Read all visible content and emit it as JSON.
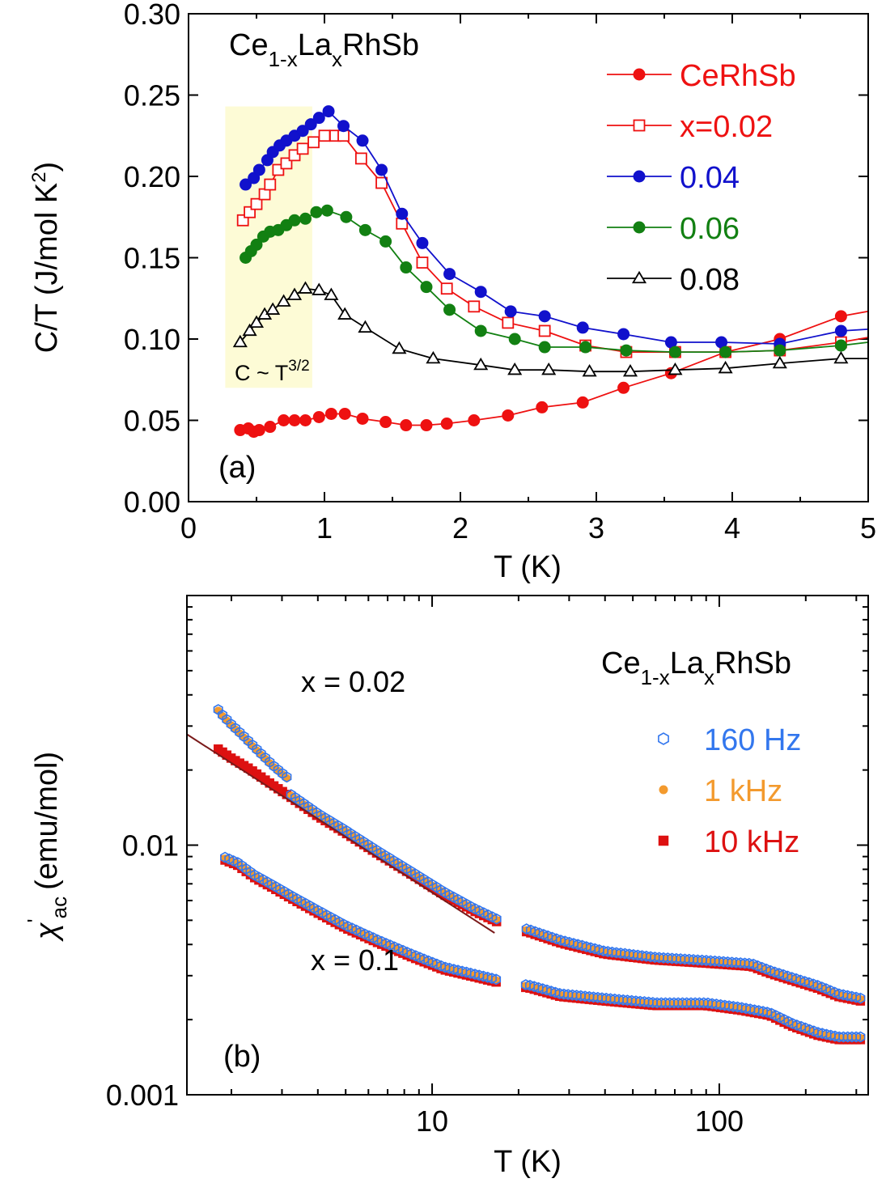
{
  "chart_data": [
    {
      "panel": "(a)",
      "type": "line",
      "title_parts": {
        "ce": "Ce",
        "sub1": "1-x",
        "la": "La",
        "sub2": "x",
        "rest": "RhSb"
      },
      "xlabel": "T (K)",
      "ylabel": {
        "main": "C/T (J/mol K",
        "sup": "2",
        "close": ")"
      },
      "xlim": [
        0,
        5
      ],
      "ylim": [
        0,
        0.3
      ],
      "xticks": [
        0,
        1,
        2,
        3,
        4,
        5
      ],
      "xtick_labels": [
        "0",
        "1",
        "2",
        "3",
        "4",
        "5"
      ],
      "yticks": [
        0,
        0.05,
        0.1,
        0.15,
        0.2,
        0.25,
        0.3
      ],
      "ytick_labels": [
        "0.00",
        "0.05",
        "0.10",
        "0.15",
        "0.20",
        "0.25",
        "0.30"
      ],
      "shaded_region": {
        "x": [
          0.27,
          0.91
        ],
        "y": [
          0.07,
          0.243
        ]
      },
      "annotation": {
        "text": "C ~ T",
        "sup": "3/2",
        "x": 0.32,
        "y": 0.078
      },
      "series": [
        {
          "name": "CeRhSb",
          "color": "#ee1111",
          "marker": "filled-circle",
          "x": [
            0.38,
            0.44,
            0.48,
            0.52,
            0.6,
            0.7,
            0.78,
            0.86,
            0.96,
            1.05,
            1.15,
            1.28,
            1.45,
            1.6,
            1.75,
            1.9,
            2.1,
            2.35,
            2.6,
            2.9,
            3.2,
            3.55,
            3.95,
            4.35,
            4.8,
            5.0
          ],
          "values": [
            0.044,
            0.045,
            0.043,
            0.044,
            0.046,
            0.05,
            0.05,
            0.05,
            0.052,
            0.054,
            0.054,
            0.051,
            0.049,
            0.047,
            0.047,
            0.048,
            0.05,
            0.053,
            0.058,
            0.061,
            0.07,
            0.079,
            0.092,
            0.1,
            0.114,
            0.117
          ]
        },
        {
          "name": "x=0.02",
          "color": "#ee1111",
          "marker": "open-square",
          "x": [
            0.4,
            0.45,
            0.5,
            0.56,
            0.6,
            0.66,
            0.72,
            0.78,
            0.84,
            0.92,
            1.0,
            1.08,
            1.14,
            1.27,
            1.42,
            1.57,
            1.72,
            1.9,
            2.1,
            2.35,
            2.62,
            2.92,
            3.22,
            3.58,
            3.95,
            4.35,
            4.8,
            5.0
          ],
          "values": [
            0.173,
            0.178,
            0.183,
            0.189,
            0.195,
            0.204,
            0.208,
            0.213,
            0.217,
            0.221,
            0.225,
            0.225,
            0.225,
            0.211,
            0.196,
            0.171,
            0.147,
            0.131,
            0.12,
            0.11,
            0.105,
            0.096,
            0.092,
            0.092,
            0.092,
            0.093,
            0.098,
            0.101
          ]
        },
        {
          "name": "0.04",
          "color": "#1111cc",
          "marker": "filled-circle",
          "x": [
            0.42,
            0.48,
            0.52,
            0.58,
            0.62,
            0.67,
            0.72,
            0.78,
            0.84,
            0.9,
            0.96,
            1.03,
            1.14,
            1.28,
            1.42,
            1.57,
            1.72,
            1.92,
            2.15,
            2.37,
            2.62,
            2.9,
            3.2,
            3.55,
            3.92,
            4.35,
            4.8,
            5.0
          ],
          "values": [
            0.195,
            0.199,
            0.204,
            0.21,
            0.215,
            0.219,
            0.222,
            0.225,
            0.228,
            0.232,
            0.236,
            0.24,
            0.231,
            0.222,
            0.204,
            0.177,
            0.159,
            0.14,
            0.129,
            0.117,
            0.114,
            0.107,
            0.103,
            0.098,
            0.098,
            0.097,
            0.105,
            0.106
          ]
        },
        {
          "name": "0.06",
          "color": "#128012",
          "marker": "filled-circle",
          "x": [
            0.42,
            0.46,
            0.5,
            0.55,
            0.6,
            0.66,
            0.72,
            0.78,
            0.86,
            0.94,
            1.02,
            1.16,
            1.3,
            1.45,
            1.6,
            1.75,
            1.92,
            2.15,
            2.4,
            2.62,
            2.92,
            3.22,
            3.58,
            3.95,
            4.35,
            4.8,
            5.0
          ],
          "values": [
            0.15,
            0.154,
            0.158,
            0.163,
            0.166,
            0.167,
            0.17,
            0.173,
            0.174,
            0.178,
            0.179,
            0.175,
            0.167,
            0.16,
            0.144,
            0.132,
            0.118,
            0.105,
            0.1,
            0.095,
            0.095,
            0.093,
            0.092,
            0.092,
            0.093,
            0.096,
            0.098
          ]
        },
        {
          "name": "0.08",
          "color": "#000000",
          "marker": "open-triangle",
          "x": [
            0.38,
            0.45,
            0.5,
            0.56,
            0.62,
            0.7,
            0.78,
            0.86,
            0.96,
            1.05,
            1.15,
            1.3,
            1.55,
            1.8,
            2.15,
            2.4,
            2.65,
            2.95,
            3.25,
            3.58,
            3.95,
            4.35,
            4.8,
            5.0
          ],
          "values": [
            0.098,
            0.105,
            0.11,
            0.115,
            0.118,
            0.123,
            0.127,
            0.131,
            0.13,
            0.127,
            0.115,
            0.107,
            0.094,
            0.088,
            0.084,
            0.081,
            0.081,
            0.08,
            0.08,
            0.081,
            0.082,
            0.085,
            0.088,
            0.088
          ]
        }
      ]
    },
    {
      "panel": "(b)",
      "type": "scatter",
      "xscale": "log",
      "yscale": "log",
      "title_parts": {
        "ce": "Ce",
        "sub1": "1-x",
        "la": "La",
        "sub2": "x",
        "rest": "RhSb"
      },
      "xlabel": "T (K)",
      "ylabel": {
        "greek": "χ",
        "prime": "'",
        "sub": "ac",
        "unit": "(emu/mol)"
      },
      "xlim": [
        1.4,
        330
      ],
      "ylim": [
        0.001,
        0.1
      ],
      "xticks": [
        10,
        100
      ],
      "xtick_labels": [
        "10",
        "100"
      ],
      "yticks": [
        0.001,
        0.01
      ],
      "ytick_labels": [
        "0.001",
        "0.01"
      ],
      "annotations": [
        {
          "text": "x = 0.02",
          "x": 7.0,
          "y": 0.0215
        },
        {
          "text": "x = 0.1",
          "x": 6.3,
          "y": 0.00285
        }
      ],
      "fit_line": {
        "x": [
          1.4,
          16.5
        ],
        "y": [
          0.0278,
          0.00445
        ],
        "color": "#7a1a1a"
      },
      "series": [
        {
          "name": "160 Hz",
          "color": "#3377ee",
          "marker": "open-hexagon",
          "x_offset_factor": 1.0,
          "y_offset_factor": 1.015
        },
        {
          "name": "1 kHz",
          "color": "#f39a2e",
          "marker": "filled-circle",
          "x_offset_factor": 1.0,
          "y_offset_factor": 1.005
        },
        {
          "name": "10 kHz",
          "color": "#dd1111",
          "marker": "filled-square",
          "x_offset_factor": 1.0,
          "y_offset_factor": 0.99
        }
      ],
      "curves": [
        {
          "label": "x = 0.02",
          "x": [
            1.8,
            2.0,
            2.3,
            2.7,
            3.2,
            4.0,
            5.0,
            6.5,
            8.5,
            11,
            14,
            18,
            22,
            28,
            40,
            60,
            90,
            130,
            150,
            180,
            220,
            260,
            310
          ],
          "y": [
            0.0245,
            0.0225,
            0.0205,
            0.018,
            0.0158,
            0.0132,
            0.0113,
            0.0093,
            0.0077,
            0.0064,
            0.0055,
            0.0048,
            0.0045,
            0.0041,
            0.0037,
            0.0035,
            0.0034,
            0.0033,
            0.0031,
            0.0029,
            0.0027,
            0.0025,
            0.0024
          ],
          "low_T_rise": {
            "x": [
              1.7,
              1.85,
              2.0,
              2.2,
              2.5,
              2.8,
              3.2
            ],
            "y": [
              0.0375,
              0.033,
              0.03,
              0.027,
              0.0233,
              0.0205,
              0.018
            ]
          }
        },
        {
          "label": "x = 0.1",
          "x": [
            1.9,
            2.1,
            2.4,
            2.8,
            3.3,
            4.0,
            5.0,
            6.5,
            8.5,
            11,
            14,
            18,
            22,
            28,
            40,
            60,
            90,
            120,
            150,
            180,
            220,
            260,
            310
          ],
          "y": [
            0.0088,
            0.0084,
            0.0075,
            0.0068,
            0.0061,
            0.0054,
            0.0047,
            0.0041,
            0.0036,
            0.0032,
            0.003,
            0.0028,
            0.0027,
            0.0025,
            0.0024,
            0.0023,
            0.0023,
            0.0022,
            0.0021,
            0.0019,
            0.00175,
            0.00168,
            0.00168
          ]
        }
      ]
    }
  ]
}
